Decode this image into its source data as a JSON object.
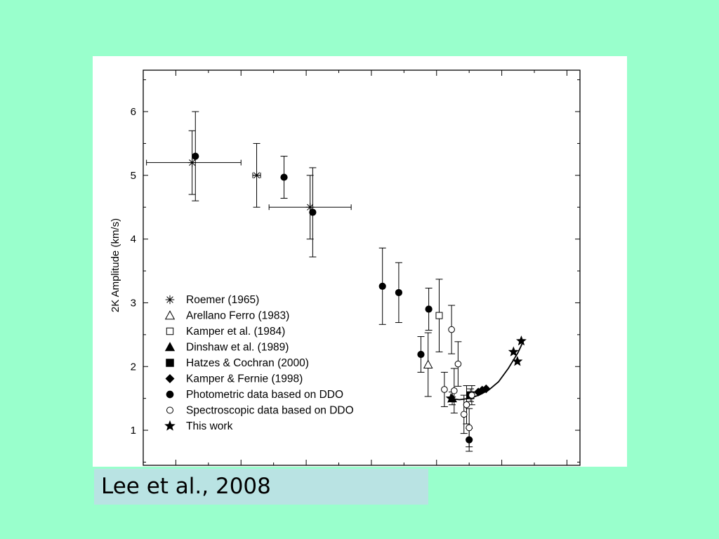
{
  "caption": "Lee et al., 2008",
  "colors": {
    "slide_background": "#99ffcc",
    "plot_background": "#ffffff",
    "caption_background": "#b9e3e3",
    "marker": "#000000"
  },
  "chart_data": {
    "type": "scatter",
    "title": "",
    "xlabel": "",
    "ylabel": "2K Amplitude (km/s)",
    "xlim": [
      1945,
      2012
    ],
    "ylim": [
      0.45,
      6.65
    ],
    "ytick_labels": [
      "1",
      "2",
      "3",
      "4",
      "5",
      "6"
    ],
    "ytick_values": [
      1,
      2,
      3,
      4,
      5,
      6
    ],
    "x_axis_note": "x tick labels are not visible in the image",
    "legend_position": "lower-left",
    "series": [
      {
        "name": "Roemer (1965)",
        "marker": "asterisk",
        "points": [
          {
            "x": 1952.5,
            "y": 5.2,
            "yerr": 0.5,
            "xerr_low": 7,
            "xerr_high": 7.5
          },
          {
            "x": 1962.4,
            "y": 5.0,
            "yerr": 0.5,
            "xerr_low": 0.6,
            "xerr_high": 0.6
          },
          {
            "x": 1970.6,
            "y": 4.5,
            "yerr": 0.5,
            "xerr_low": 6.3,
            "xerr_high": 6.3
          }
        ]
      },
      {
        "name": "Arellano Ferro (1983)",
        "marker": "open-triangle",
        "points": [
          {
            "x": 1988.7,
            "y": 2.03,
            "yerr": 0.5
          }
        ]
      },
      {
        "name": "Kamper et al. (1984)",
        "marker": "open-square",
        "points": [
          {
            "x": 1990.4,
            "y": 2.8,
            "yerr": 0.57
          }
        ]
      },
      {
        "name": "Dinshaw et al. (1989)",
        "marker": "filled-triangle",
        "points": [
          {
            "x": 1992.4,
            "y": 1.5,
            "yerr": 0.1
          }
        ]
      },
      {
        "name": "Hatzes & Cochran (2000)",
        "marker": "filled-square",
        "points": [
          {
            "x": 1995.2,
            "y": 1.55,
            "yerr": 0.1
          }
        ]
      },
      {
        "name": "Kamper & Fernie (1998)",
        "marker": "filled-diamond",
        "points": [
          {
            "x": 1996.4,
            "y": 1.6
          },
          {
            "x": 1997.0,
            "y": 1.63
          },
          {
            "x": 1997.6,
            "y": 1.65
          }
        ]
      },
      {
        "name": "Photometric data based on DDO",
        "marker": "filled-circle",
        "points": [
          {
            "x": 1953.0,
            "y": 5.3,
            "yerr": 0.7
          },
          {
            "x": 1966.6,
            "y": 4.97,
            "yerr": 0.33
          },
          {
            "x": 1971.0,
            "y": 4.42,
            "yerr": 0.7
          },
          {
            "x": 1981.7,
            "y": 3.26,
            "yerr": 0.6
          },
          {
            "x": 1984.2,
            "y": 3.16,
            "yerr": 0.47
          },
          {
            "x": 1987.6,
            "y": 2.19,
            "yerr": 0.28
          },
          {
            "x": 1988.8,
            "y": 2.9,
            "yerr": 0.33
          },
          {
            "x": 1995.0,
            "y": 0.85,
            "yerr": 0.18
          }
        ]
      },
      {
        "name": "Spectroscopic data based on DDO",
        "marker": "open-circle",
        "points": [
          {
            "x": 1991.2,
            "y": 1.64,
            "yerr": 0.27
          },
          {
            "x": 1992.3,
            "y": 2.58,
            "yerr": 0.38
          },
          {
            "x": 1992.7,
            "y": 1.62,
            "yerr": 0.35
          },
          {
            "x": 1993.3,
            "y": 2.04,
            "yerr": 0.35
          },
          {
            "x": 1994.2,
            "y": 1.25,
            "yerr": 0.3
          },
          {
            "x": 1994.6,
            "y": 1.4,
            "yerr": 0.3
          },
          {
            "x": 1995.0,
            "y": 1.04,
            "yerr": 0.3
          },
          {
            "x": 1995.4,
            "y": 1.55,
            "yerr": 0.15
          }
        ]
      },
      {
        "name": "This work",
        "marker": "filled-star",
        "points": [
          {
            "x": 1992.2,
            "y": 1.5
          },
          {
            "x": 2001.8,
            "y": 2.23
          },
          {
            "x": 2002.4,
            "y": 2.08
          },
          {
            "x": 2003.0,
            "y": 2.4
          }
        ]
      }
    ],
    "fit_curve": {
      "style": "solid",
      "points": [
        {
          "x": 1992.0,
          "y": 1.5
        },
        {
          "x": 1993.5,
          "y": 1.48
        },
        {
          "x": 1995.0,
          "y": 1.5
        },
        {
          "x": 1996.5,
          "y": 1.55
        },
        {
          "x": 1998.0,
          "y": 1.63
        },
        {
          "x": 1999.5,
          "y": 1.76
        },
        {
          "x": 2001.0,
          "y": 1.97
        },
        {
          "x": 2002.5,
          "y": 2.22
        },
        {
          "x": 2003.4,
          "y": 2.42
        }
      ]
    }
  }
}
